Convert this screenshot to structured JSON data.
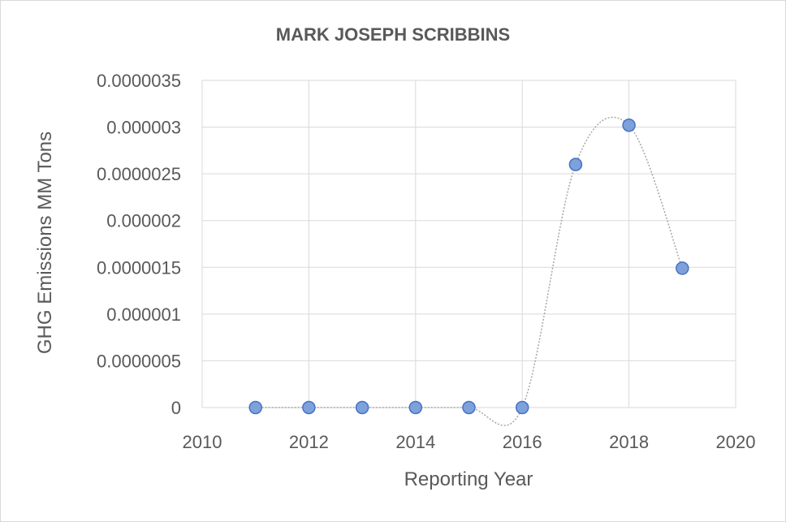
{
  "chart_data": {
    "type": "scatter",
    "title": "MARK JOSEPH SCRIBBINS",
    "xlabel": "Reporting Year",
    "ylabel": "GHG Emissions MM Tons",
    "xlim": [
      2010,
      2020
    ],
    "ylim": [
      0,
      3.5e-06
    ],
    "x_ticks": [
      2010,
      2012,
      2014,
      2016,
      2018,
      2020
    ],
    "x_tick_labels": [
      "2010",
      "2012",
      "2014",
      "2016",
      "2018",
      "2020"
    ],
    "y_ticks": [
      0,
      5e-07,
      1e-06,
      1.5e-06,
      2e-06,
      2.5e-06,
      3e-06,
      3.5e-06
    ],
    "y_tick_labels": [
      "0",
      "0.0000005",
      "0.000001",
      "0.0000015",
      "0.000002",
      "0.0000025",
      "0.000003",
      "0.0000035"
    ],
    "grid": true,
    "legend": "none",
    "smooth_line": true,
    "marker_color": "#7EA1DB",
    "marker_edge_color": "#4472C4",
    "line_color": "#a6a6a6",
    "series": [
      {
        "x": [
          2011,
          2012,
          2013,
          2014,
          2015,
          2016,
          2017,
          2018,
          2019
        ],
        "values": [
          0,
          0,
          0,
          0,
          0,
          0,
          2.6e-06,
          3.02e-06,
          1.49e-06
        ]
      }
    ]
  }
}
